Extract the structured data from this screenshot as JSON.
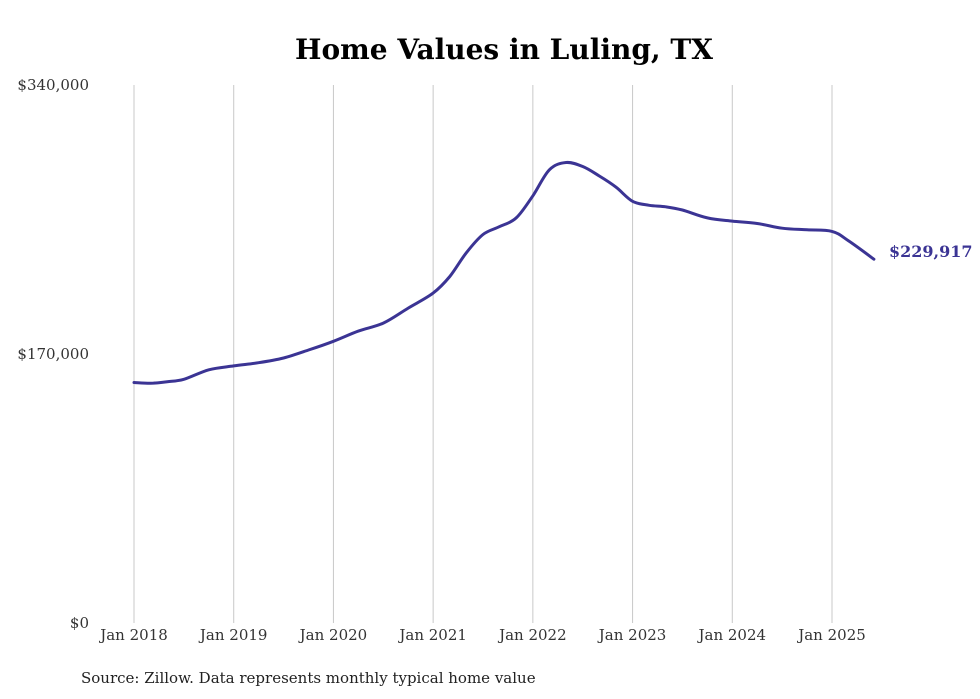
{
  "chart_data": {
    "type": "line",
    "title": "Home Values in Luling, TX",
    "source": "Source: Zillow. Data represents monthly typical home value",
    "xlabel": "",
    "ylabel": "",
    "ylim": [
      0,
      340000
    ],
    "yticks": [
      {
        "value": 0,
        "label": "$0"
      },
      {
        "value": 170000,
        "label": "$170,000"
      },
      {
        "value": 340000,
        "label": "$340,000"
      }
    ],
    "xticks": [
      {
        "value": 2018.0,
        "label": "Jan 2018"
      },
      {
        "value": 2019.0,
        "label": "Jan 2019"
      },
      {
        "value": 2020.0,
        "label": "Jan 2020"
      },
      {
        "value": 2021.0,
        "label": "Jan 2021"
      },
      {
        "value": 2022.0,
        "label": "Jan 2022"
      },
      {
        "value": 2023.0,
        "label": "Jan 2023"
      },
      {
        "value": 2024.0,
        "label": "Jan 2024"
      },
      {
        "value": 2025.0,
        "label": "Jan 2025"
      }
    ],
    "xlim": [
      2018.0,
      2025.42
    ],
    "grid": {
      "vertical": true,
      "horizontal": false
    },
    "line_color": "#3b3494",
    "end_label": "$229,917",
    "series": [
      {
        "x": [
          2018.0,
          2018.1667,
          2018.3333,
          2018.5,
          2018.75,
          2019.0,
          2019.25,
          2019.5,
          2019.75,
          2020.0,
          2020.25,
          2020.5,
          2020.75,
          2021.0,
          2021.1667,
          2021.3333,
          2021.5,
          2021.6667,
          2021.8333,
          2022.0,
          2022.1667,
          2022.3333,
          2022.5,
          2022.6667,
          2022.8333,
          2023.0,
          2023.1667,
          2023.3333,
          2023.5,
          2023.75,
          2024.0,
          2024.25,
          2024.5,
          2024.75,
          2025.0,
          2025.1667,
          2025.42
        ],
        "y": [
          152000,
          151500,
          152500,
          154000,
          160000,
          162500,
          164500,
          167500,
          172500,
          178000,
          184500,
          189500,
          199000,
          208500,
          219000,
          234000,
          245500,
          250500,
          256000,
          270000,
          286500,
          291000,
          288500,
          282500,
          275500,
          266500,
          264000,
          263000,
          261000,
          256000,
          254000,
          252500,
          249500,
          248500,
          247500,
          241500,
          229917
        ]
      }
    ]
  }
}
